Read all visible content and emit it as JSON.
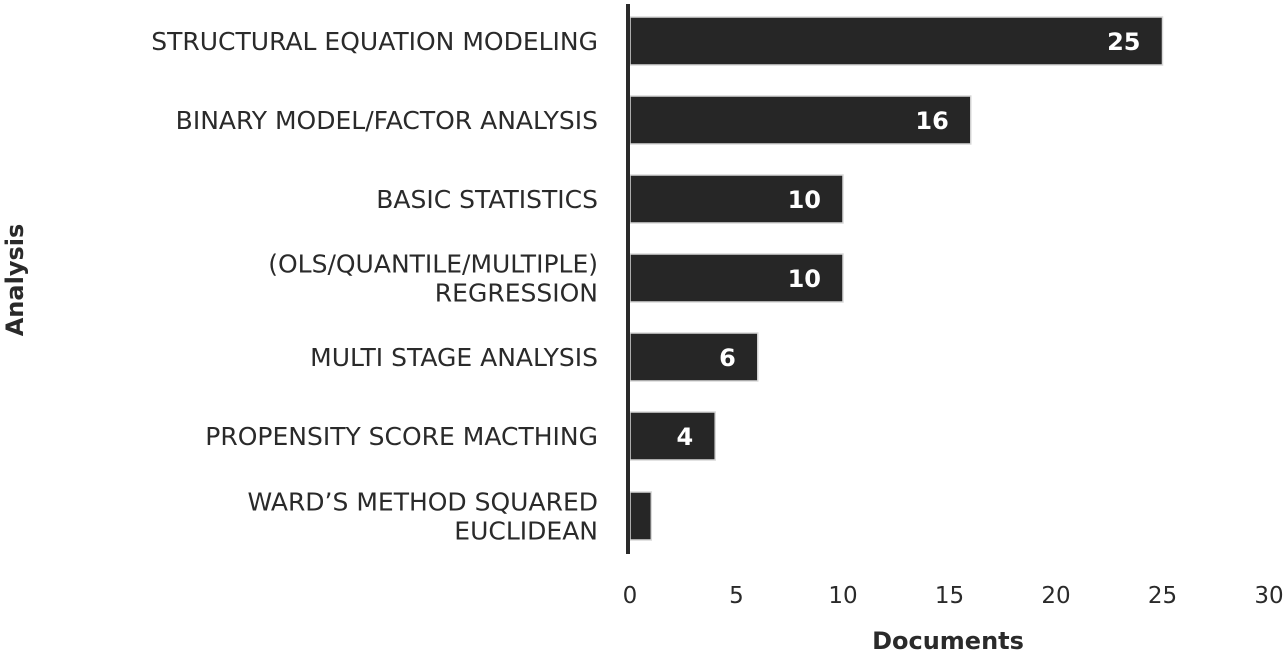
{
  "chart_data": {
    "type": "bar",
    "orientation": "horizontal",
    "xlabel": "Documents",
    "ylabel": "Analysis",
    "xlim": [
      0,
      30
    ],
    "xticks": [
      "0",
      "5",
      "10",
      "15",
      "20",
      "25",
      "30"
    ],
    "grid": false,
    "bar_color": "#262626",
    "value_label_color": "#ffffff",
    "categories": [
      [
        "STRUCTURAL EQUATION MODELING"
      ],
      [
        "BINARY MODEL/FACTOR ANALYSIS"
      ],
      [
        "BASIC STATISTICS"
      ],
      [
        "(OLS/QUANTILE/MULTIPLE)",
        "REGRESSION"
      ],
      [
        "MULTI STAGE ANALYSIS"
      ],
      [
        "PROPENSITY SCORE MACTHING"
      ],
      [
        "WARD’S METHOD  SQUARED",
        "EUCLIDEAN"
      ]
    ],
    "values": [
      25,
      16,
      10,
      10,
      6,
      4,
      1
    ],
    "value_labels": [
      "25",
      "16",
      "10",
      "10",
      "6",
      "4",
      ""
    ]
  }
}
